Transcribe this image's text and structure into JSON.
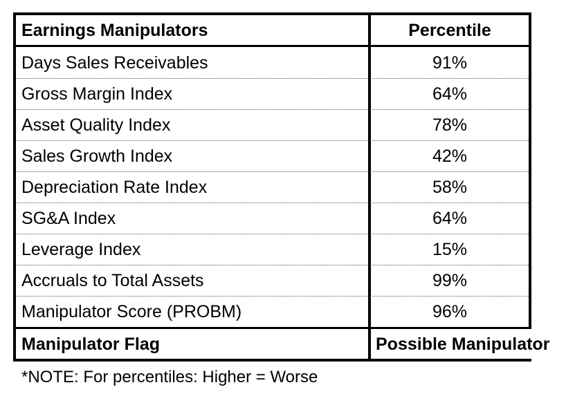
{
  "table": {
    "header": {
      "label": "Earnings Manipulators",
      "value": "Percentile"
    },
    "rows": [
      {
        "label": "Days Sales Receivables",
        "value": "91%"
      },
      {
        "label": "Gross Margin Index",
        "value": "64%"
      },
      {
        "label": "Asset Quality Index",
        "value": "78%"
      },
      {
        "label": "Sales Growth Index",
        "value": "42%"
      },
      {
        "label": "Depreciation Rate Index",
        "value": "58%"
      },
      {
        "label": "SG&A Index",
        "value": "64%"
      },
      {
        "label": "Leverage Index",
        "value": "15%"
      },
      {
        "label": "Accruals to Total Assets",
        "value": "99%"
      },
      {
        "label": "Manipulator Score (PROBM)",
        "value": "96%"
      }
    ],
    "footer": {
      "label": "Manipulator Flag",
      "value": "Possible Manipulator"
    }
  },
  "note": "*NOTE: For percentiles: Higher = Worse"
}
